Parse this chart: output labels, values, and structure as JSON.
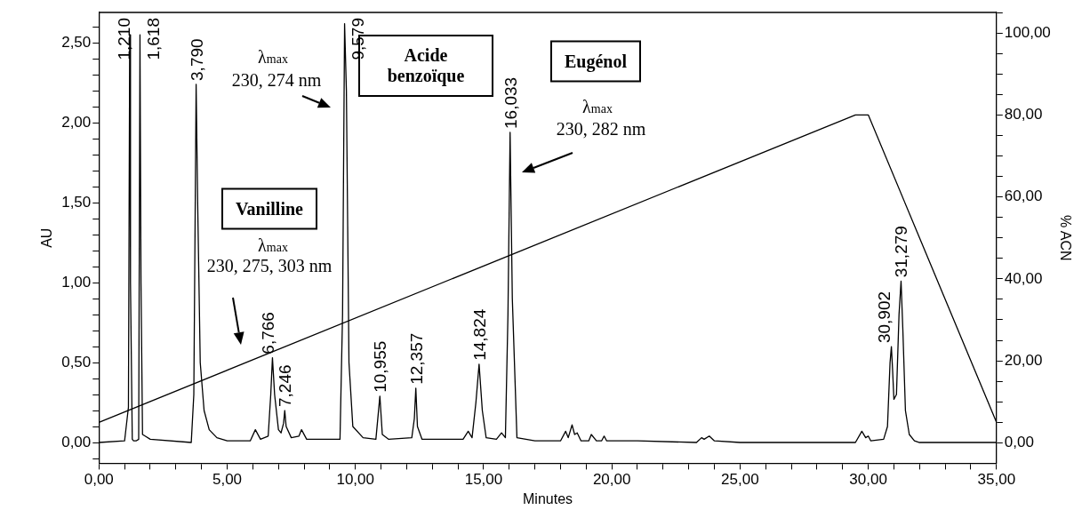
{
  "chart_data": {
    "type": "line",
    "xlabel": "Minutes",
    "ylabel": "AU",
    "y2label": "% ACN",
    "xlim": [
      0,
      35
    ],
    "ylim": [
      -0.13,
      2.69
    ],
    "y2lim": [
      -5,
      105
    ],
    "xticks": [
      {
        "value": 0,
        "label": "0,00"
      },
      {
        "value": 1,
        "label": null
      },
      {
        "value": 2,
        "label": null
      },
      {
        "value": 3,
        "label": null
      },
      {
        "value": 4,
        "label": null
      },
      {
        "value": 5,
        "label": "5,00"
      },
      {
        "value": 6,
        "label": null
      },
      {
        "value": 7,
        "label": null
      },
      {
        "value": 8,
        "label": null
      },
      {
        "value": 9,
        "label": null
      },
      {
        "value": 10,
        "label": "10,00"
      },
      {
        "value": 11,
        "label": null
      },
      {
        "value": 12,
        "label": null
      },
      {
        "value": 13,
        "label": null
      },
      {
        "value": 14,
        "label": null
      },
      {
        "value": 15,
        "label": "15,00"
      },
      {
        "value": 16,
        "label": null
      },
      {
        "value": 17,
        "label": null
      },
      {
        "value": 18,
        "label": null
      },
      {
        "value": 19,
        "label": null
      },
      {
        "value": 20,
        "label": "20,00"
      },
      {
        "value": 21,
        "label": null
      },
      {
        "value": 22,
        "label": null
      },
      {
        "value": 23,
        "label": null
      },
      {
        "value": 24,
        "label": null
      },
      {
        "value": 25,
        "label": "25,00"
      },
      {
        "value": 26,
        "label": null
      },
      {
        "value": 27,
        "label": null
      },
      {
        "value": 28,
        "label": null
      },
      {
        "value": 29,
        "label": null
      },
      {
        "value": 30,
        "label": "30,00"
      },
      {
        "value": 31,
        "label": null
      },
      {
        "value": 32,
        "label": null
      },
      {
        "value": 33,
        "label": null
      },
      {
        "value": 34,
        "label": null
      },
      {
        "value": 35,
        "label": "35,00"
      }
    ],
    "yticks": [
      {
        "value": -0.1,
        "label": null
      },
      {
        "value": 0,
        "label": "0,00"
      },
      {
        "value": 0.1,
        "label": null
      },
      {
        "value": 0.2,
        "label": null
      },
      {
        "value": 0.3,
        "label": null
      },
      {
        "value": 0.4,
        "label": null
      },
      {
        "value": 0.5,
        "label": "0,50"
      },
      {
        "value": 0.6,
        "label": null
      },
      {
        "value": 0.7,
        "label": null
      },
      {
        "value": 0.8,
        "label": null
      },
      {
        "value": 0.9,
        "label": null
      },
      {
        "value": 1,
        "label": "1,00"
      },
      {
        "value": 1.1,
        "label": null
      },
      {
        "value": 1.2,
        "label": null
      },
      {
        "value": 1.3,
        "label": null
      },
      {
        "value": 1.4,
        "label": null
      },
      {
        "value": 1.5,
        "label": "1,50"
      },
      {
        "value": 1.6,
        "label": null
      },
      {
        "value": 1.7,
        "label": null
      },
      {
        "value": 1.8,
        "label": null
      },
      {
        "value": 1.9,
        "label": null
      },
      {
        "value": 2,
        "label": "2,00"
      },
      {
        "value": 2.1,
        "label": null
      },
      {
        "value": 2.2,
        "label": null
      },
      {
        "value": 2.3,
        "label": null
      },
      {
        "value": 2.4,
        "label": null
      },
      {
        "value": 2.5,
        "label": "2,50"
      },
      {
        "value": 2.6,
        "label": null
      }
    ],
    "y2ticks": [
      {
        "value": 0,
        "label": "0,00"
      },
      {
        "value": 5,
        "label": null
      },
      {
        "value": 10,
        "label": null
      },
      {
        "value": 15,
        "label": null
      },
      {
        "value": 20,
        "label": "20,00"
      },
      {
        "value": 25,
        "label": null
      },
      {
        "value": 30,
        "label": null
      },
      {
        "value": 35,
        "label": null
      },
      {
        "value": 40,
        "label": "40,00"
      },
      {
        "value": 45,
        "label": null
      },
      {
        "value": 50,
        "label": null
      },
      {
        "value": 55,
        "label": null
      },
      {
        "value": 60,
        "label": "60,00"
      },
      {
        "value": 65,
        "label": null
      },
      {
        "value": 70,
        "label": null
      },
      {
        "value": 75,
        "label": null
      },
      {
        "value": 80,
        "label": "80,00"
      },
      {
        "value": 85,
        "label": null
      },
      {
        "value": 90,
        "label": null
      },
      {
        "value": 95,
        "label": null
      },
      {
        "value": 100,
        "label": "100,00"
      },
      {
        "value": 105,
        "label": null
      }
    ],
    "grid": false,
    "legend": false,
    "marker": "none",
    "line_style": "solid",
    "series": [
      {
        "color": "#000000",
        "x": [
          0,
          1.0,
          1.1,
          1.15,
          1.2,
          1.21,
          1.23,
          1.3,
          1.35,
          1.45,
          1.55,
          1.6,
          1.618,
          1.64,
          1.7,
          1.8,
          2.0,
          3.6,
          3.7,
          3.79,
          3.85,
          3.95,
          4.1,
          4.3,
          4.6,
          5.0,
          5.9,
          6.1,
          6.3,
          6.6,
          6.7,
          6.766,
          6.85,
          7.0,
          7.1,
          7.2,
          7.246,
          7.3,
          7.5,
          7.8,
          7.9,
          8.1,
          9.0,
          9.4,
          9.5,
          9.579,
          9.65,
          9.75,
          9.9,
          10.3,
          10.8,
          10.955,
          11.05,
          11.3,
          12.2,
          12.3,
          12.357,
          12.42,
          12.6,
          14.2,
          14.4,
          14.55,
          14.7,
          14.824,
          14.95,
          15.1,
          15.5,
          15.7,
          15.85,
          15.95,
          16.033,
          16.12,
          16.3,
          17.0,
          18.0,
          18.2,
          18.3,
          18.45,
          18.55,
          18.65,
          18.8,
          19.1,
          19.2,
          19.4,
          19.6,
          19.7,
          19.8,
          21,
          23.3,
          23.5,
          23.6,
          23.8,
          24.0,
          25,
          29.5,
          29.75,
          29.9,
          30.0,
          30.1,
          30.6,
          30.75,
          30.85,
          30.902,
          30.95,
          31.0,
          31.1,
          31.2,
          31.279,
          31.35,
          31.45,
          31.6,
          31.8,
          32.0,
          35
        ],
        "values": [
          0,
          0.01,
          0.15,
          0.22,
          2.55,
          2.55,
          1.0,
          0.02,
          0.01,
          0.01,
          0.02,
          2.55,
          2.55,
          1.0,
          0.05,
          0.04,
          0.02,
          0,
          0.3,
          2.24,
          1.5,
          0.5,
          0.2,
          0.08,
          0.03,
          0.01,
          0.01,
          0.08,
          0.02,
          0.04,
          0.3,
          0.53,
          0.3,
          0.08,
          0.06,
          0.12,
          0.2,
          0.1,
          0.03,
          0.04,
          0.08,
          0.02,
          0.02,
          0.02,
          0.8,
          2.62,
          2.2,
          0.5,
          0.1,
          0.03,
          0.02,
          0.29,
          0.05,
          0.02,
          0.03,
          0.15,
          0.34,
          0.1,
          0.02,
          0.02,
          0.07,
          0.03,
          0.25,
          0.49,
          0.2,
          0.03,
          0.02,
          0.06,
          0.03,
          0.8,
          1.94,
          0.9,
          0.03,
          0.01,
          0.01,
          0.07,
          0.03,
          0.11,
          0.05,
          0.06,
          0.01,
          0.01,
          0.05,
          0.01,
          0.01,
          0.04,
          0.01,
          0.01,
          0,
          0.03,
          0.02,
          0.04,
          0.01,
          0,
          0,
          0.07,
          0.03,
          0.04,
          0.01,
          0.02,
          0.1,
          0.5,
          0.6,
          0.45,
          0.27,
          0.3,
          0.8,
          1.01,
          0.7,
          0.2,
          0.05,
          0.01,
          0,
          0
        ]
      },
      {
        "color": "#000000",
        "axis": "y2",
        "x": [
          0,
          29.5,
          30,
          35
        ],
        "values": [
          5,
          80,
          80,
          5
        ]
      }
    ],
    "annotations": [
      {
        "text": "1,210",
        "x": 1.21,
        "y": 2.55
      },
      {
        "text": "1,618",
        "x": 1.618,
        "y": 2.55
      },
      {
        "text": "3,790",
        "x": 3.79,
        "y": 2.24
      },
      {
        "text": "6,766",
        "x": 6.766,
        "y": 0.53
      },
      {
        "text": "7,246",
        "x": 7.246,
        "y": 0.2
      },
      {
        "text": "9,579",
        "x": 9.579,
        "y": 2.62
      },
      {
        "text": "10,955",
        "x": 10.955,
        "y": 0.29
      },
      {
        "text": "12,357",
        "x": 12.357,
        "y": 0.34
      },
      {
        "text": "14,824",
        "x": 14.824,
        "y": 0.49
      },
      {
        "text": "16,033",
        "x": 16.033,
        "y": 1.94
      },
      {
        "text": "30,902",
        "x": 30.902,
        "y": 0.6
      },
      {
        "text": "31,279",
        "x": 31.279,
        "y": 1.01
      },
      "Vanilline",
      "λ$_{max}$",
      "230, 275, 303 nm",
      "Acide benzoïque",
      "λ$_{max}$",
      "230, 274 nm",
      "Eugénol",
      "λ$_{max}$",
      "230, 282 nm"
    ]
  }
}
